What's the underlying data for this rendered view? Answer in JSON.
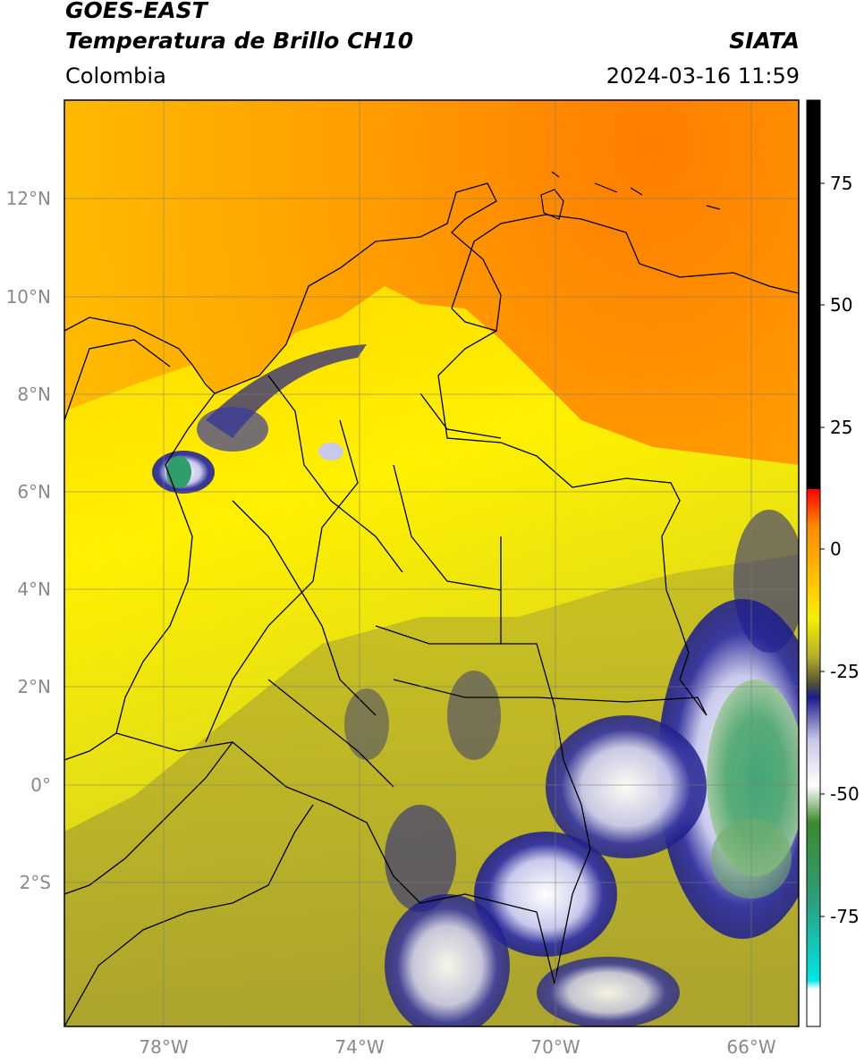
{
  "header": {
    "satellite": "GOES-EAST",
    "product": "Temperatura de Brillo CH10",
    "source": "SIATA",
    "region": "Colombia",
    "timestamp": "2024-03-16 11:59"
  },
  "map": {
    "lat_ticks": [
      "12°N",
      "10°N",
      "8°N",
      "6°N",
      "4°N",
      "2°N",
      "0°",
      "2°S"
    ],
    "lon_ticks": [
      "78°W",
      "74°W",
      "70°W",
      "66°W"
    ],
    "gridlines": true,
    "colors": {
      "sea_orange": "#ff9a00",
      "land_yellow": "#fff200",
      "olive": "#b3ac28",
      "cloud_blue": "#1c1c8c",
      "cloud_white": "#ffffff",
      "cloud_green": "#2f9e6a"
    }
  },
  "colorbar": {
    "ticks": [
      "75",
      "50",
      "25",
      "0",
      "-25",
      "-50",
      "-75"
    ]
  }
}
